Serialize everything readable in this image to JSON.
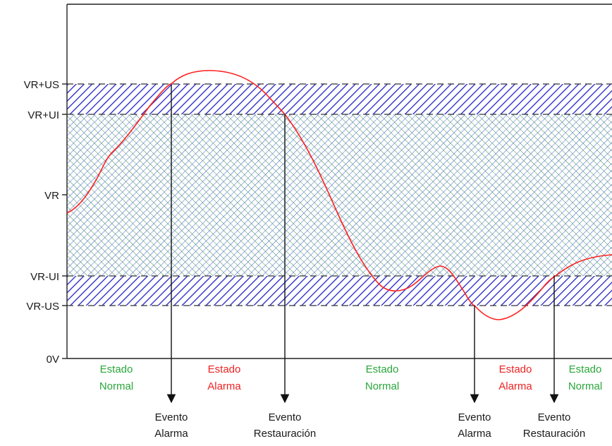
{
  "colors": {
    "band_hatch": "#2323c8",
    "mesh_green": "#3a8c5a",
    "mesh_blue": "#3b5bd0",
    "signal": "#ff2020",
    "normal_text": "#2aa63a",
    "alarm_text": "#ee2222",
    "axis": "#222222"
  },
  "levels": {
    "vr_us": "VR+US",
    "vr_ui": "VR+UI",
    "vr": "VR",
    "vr_mui": "VR-UI",
    "vr_mus": "VR-US",
    "zero": "0V"
  },
  "states": [
    {
      "line1": "Estado",
      "line2": "Normal",
      "kind": "normal"
    },
    {
      "line1": "Estado",
      "line2": "Alarma",
      "kind": "alarm"
    },
    {
      "line1": "Estado",
      "line2": "Normal",
      "kind": "normal"
    },
    {
      "line1": "Estado",
      "line2": "Alarma",
      "kind": "alarm"
    },
    {
      "line1": "Estado",
      "line2": "Normal",
      "kind": "normal"
    }
  ],
  "events": [
    {
      "line1": "Evento",
      "line2": "Alarma"
    },
    {
      "line1": "Evento",
      "line2": "Restauración"
    },
    {
      "line1": "Evento",
      "line2": "Alarma"
    },
    {
      "line1": "Evento",
      "line2": "Restauración"
    }
  ]
}
